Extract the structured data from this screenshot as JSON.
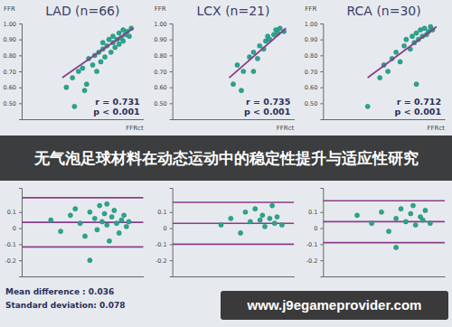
{
  "chart_data": [
    {
      "type": "scatter",
      "title": "LAD (n=66)",
      "y_label": "FFR",
      "x_label": "FFRct",
      "xlim": [
        0.4,
        1.0
      ],
      "ylim": [
        0.4,
        1.0
      ],
      "yticks": [
        {
          "value": 0.5,
          "label": "0.50"
        },
        {
          "value": 0.6,
          "label": "0.60"
        },
        {
          "value": 0.7,
          "label": "0.70"
        },
        {
          "value": 0.8,
          "label": "0.80"
        },
        {
          "value": 0.9,
          "label": "0.90"
        },
        {
          "value": 1.0,
          "label": "1.00"
        }
      ],
      "tick_labels": "y",
      "annotations": [
        "r = 0.731",
        "p < 0.001"
      ],
      "series": [
        {
          "type": "scatter",
          "marker": "circle",
          "color": "#2aa58c",
          "x": [
            0.62,
            0.65,
            0.68,
            0.7,
            0.72,
            0.73,
            0.75,
            0.76,
            0.77,
            0.78,
            0.79,
            0.8,
            0.8,
            0.81,
            0.82,
            0.83,
            0.84,
            0.85,
            0.85,
            0.86,
            0.87,
            0.88,
            0.88,
            0.89,
            0.9,
            0.9,
            0.91,
            0.92,
            0.93,
            0.94,
            0.71,
            0.66
          ],
          "values": [
            0.6,
            0.66,
            0.7,
            0.72,
            0.62,
            0.78,
            0.74,
            0.8,
            0.7,
            0.82,
            0.76,
            0.84,
            0.88,
            0.79,
            0.86,
            0.9,
            0.82,
            0.88,
            0.92,
            0.85,
            0.9,
            0.94,
            0.87,
            0.91,
            0.96,
            0.89,
            0.93,
            0.95,
            0.92,
            0.97,
            0.58,
            0.48
          ]
        },
        {
          "type": "line",
          "color": "#8a3d8c",
          "x": [
            0.6,
            0.95
          ],
          "values": [
            0.66,
            0.97
          ]
        }
      ]
    },
    {
      "type": "scatter",
      "title": "LCX (n=21)",
      "y_label": "FFR",
      "x_label": "FFRct",
      "xlim": [
        0.4,
        1.0
      ],
      "ylim": [
        0.4,
        1.0
      ],
      "yticks": [
        {
          "value": 0.5,
          "label": "0.50"
        },
        {
          "value": 0.6,
          "label": "0.60"
        },
        {
          "value": 0.7,
          "label": "0.70"
        },
        {
          "value": 0.8,
          "label": "0.80"
        },
        {
          "value": 0.9,
          "label": "0.90"
        },
        {
          "value": 1.0,
          "label": "1.00"
        }
      ],
      "tick_labels": "y",
      "annotations": [
        "r = 0.735",
        "p < 0.001"
      ],
      "series": [
        {
          "type": "scatter",
          "marker": "circle",
          "color": "#2aa58c",
          "x": [
            0.7,
            0.72,
            0.75,
            0.78,
            0.8,
            0.82,
            0.83,
            0.85,
            0.86,
            0.87,
            0.88,
            0.9,
            0.91,
            0.92,
            0.93,
            0.95,
            0.74,
            0.8
          ],
          "values": [
            0.62,
            0.74,
            0.7,
            0.79,
            0.82,
            0.78,
            0.86,
            0.84,
            0.89,
            0.92,
            0.9,
            0.93,
            0.96,
            0.94,
            0.97,
            0.95,
            0.58,
            0.7
          ]
        },
        {
          "type": "line",
          "color": "#8a3d8c",
          "x": [
            0.68,
            0.96
          ],
          "values": [
            0.66,
            0.97
          ]
        }
      ]
    },
    {
      "type": "scatter",
      "title": "RCA (n=30)",
      "y_label": "FFR",
      "x_label": "FFRct",
      "xlim": [
        0.4,
        1.0
      ],
      "ylim": [
        0.4,
        1.0
      ],
      "yticks": [
        {
          "value": 0.5,
          "label": "0.50"
        },
        {
          "value": 0.6,
          "label": "0.60"
        },
        {
          "value": 0.7,
          "label": "0.70"
        },
        {
          "value": 0.8,
          "label": "0.80"
        },
        {
          "value": 0.9,
          "label": "0.90"
        },
        {
          "value": 1.0,
          "label": "1.00"
        }
      ],
      "tick_labels": "y",
      "annotations": [
        "r = 0.712",
        "p < 0.001"
      ],
      "series": [
        {
          "type": "scatter",
          "marker": "circle",
          "color": "#2aa58c",
          "x": [
            0.62,
            0.68,
            0.7,
            0.72,
            0.74,
            0.76,
            0.78,
            0.8,
            0.81,
            0.83,
            0.84,
            0.85,
            0.86,
            0.87,
            0.88,
            0.89,
            0.9,
            0.91,
            0.92,
            0.93,
            0.94,
            0.86
          ],
          "values": [
            0.48,
            0.66,
            0.74,
            0.7,
            0.78,
            0.82,
            0.76,
            0.86,
            0.9,
            0.84,
            0.92,
            0.88,
            0.94,
            0.9,
            0.96,
            0.92,
            0.97,
            0.93,
            0.95,
            0.98,
            0.96,
            0.62
          ]
        },
        {
          "type": "line",
          "color": "#8a3d8c",
          "x": [
            0.62,
            0.96
          ],
          "values": [
            0.66,
            0.98
          ]
        }
      ]
    },
    {
      "type": "scatter",
      "xlim": [
        0.5,
        1.0
      ],
      "ylim": [
        -0.3,
        0.25
      ],
      "yticks": [
        0.1,
        0,
        -0.1,
        -0.2
      ],
      "tick_labels": "y",
      "lines": {
        "color": "#8a3d8c",
        "values": [
          0.189,
          0.036,
          -0.117
        ]
      },
      "annotations": [
        "Mean difference : 0.036",
        "Standard deviation: 0.078"
      ],
      "series": [
        {
          "type": "scatter",
          "marker": "circle",
          "color": "#2aa58c",
          "x": [
            0.62,
            0.66,
            0.7,
            0.72,
            0.74,
            0.76,
            0.78,
            0.8,
            0.81,
            0.82,
            0.83,
            0.84,
            0.85,
            0.86,
            0.87,
            0.88,
            0.89,
            0.9,
            0.91,
            0.92,
            0.93,
            0.94,
            0.78,
            0.85
          ],
          "values": [
            0.05,
            -0.02,
            0.08,
            0.12,
            0.03,
            -0.05,
            0.1,
            0.06,
            -0.01,
            0.14,
            0.04,
            0.09,
            0.02,
            -0.08,
            0.07,
            0.11,
            0.03,
            -0.03,
            0.05,
            0.08,
            0.01,
            0.04,
            -0.2,
            0.15
          ]
        }
      ]
    },
    {
      "type": "scatter",
      "xlim": [
        0.5,
        1.0
      ],
      "ylim": [
        -0.3,
        0.25
      ],
      "yticks": [
        0.1,
        0,
        -0.1,
        -0.2
      ],
      "tick_labels": "y",
      "lines": {
        "color": "#8a3d8c",
        "values": [
          0.16,
          0.03,
          -0.1
        ]
      },
      "series": [
        {
          "type": "scatter",
          "marker": "circle",
          "color": "#2aa58c",
          "x": [
            0.7,
            0.74,
            0.78,
            0.8,
            0.82,
            0.84,
            0.86,
            0.87,
            0.88,
            0.9,
            0.91,
            0.92,
            0.93,
            0.95
          ],
          "values": [
            0.02,
            0.06,
            -0.03,
            0.1,
            0.04,
            0.12,
            0.05,
            0.08,
            0.01,
            0.06,
            0.14,
            0.03,
            0.07,
            0.02
          ]
        }
      ]
    },
    {
      "type": "scatter",
      "xlim": [
        0.5,
        1.0
      ],
      "ylim": [
        -0.3,
        0.25
      ],
      "yticks": [
        0.1,
        0,
        -0.1,
        -0.2
      ],
      "tick_labels": "y",
      "lines": {
        "color": "#8a3d8c",
        "values": [
          0.17,
          0.04,
          -0.09
        ]
      },
      "series": [
        {
          "type": "scatter",
          "marker": "circle",
          "color": "#2aa58c",
          "x": [
            0.64,
            0.7,
            0.74,
            0.77,
            0.8,
            0.82,
            0.84,
            0.86,
            0.87,
            0.88,
            0.9,
            0.91,
            0.92,
            0.94,
            0.8
          ],
          "values": [
            0.08,
            0.03,
            0.1,
            -0.02,
            0.06,
            0.12,
            0.04,
            0.09,
            0.14,
            0.02,
            0.07,
            0.05,
            0.11,
            0.03,
            -0.12
          ]
        }
      ]
    }
  ],
  "banner": {
    "text": "无气泡足球材料在动态运动中的稳定性提升与适应性研究"
  },
  "watermark": {
    "text": "www.j9egameprovider.com"
  }
}
